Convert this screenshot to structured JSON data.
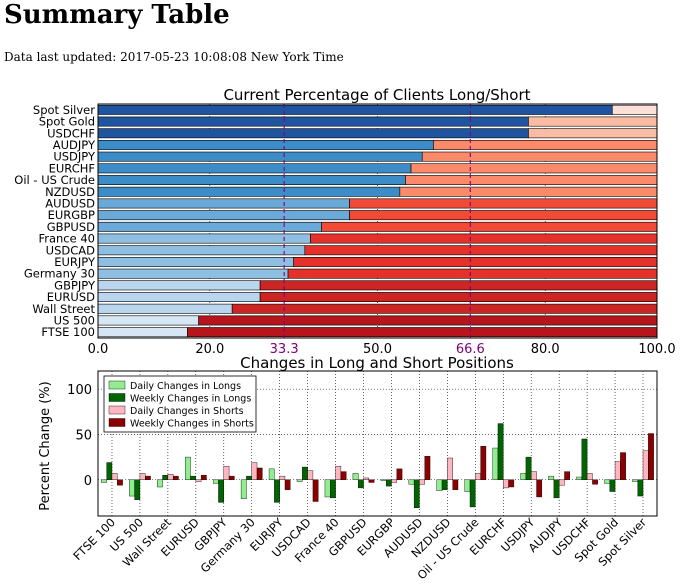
{
  "page": {
    "title": "Summary Table",
    "updated": "Data last updated: 2017-05-23 10:08:08 New York Time"
  },
  "chart_data": [
    {
      "type": "bar",
      "orientation": "horizontal",
      "stacked": true,
      "title": "Current Percentage of Clients Long/Short",
      "categories": [
        "Spot Silver",
        "Spot Gold",
        "USDCHF",
        "AUDJPY",
        "USDJPY",
        "EURCHF",
        "Oil - US Crude",
        "NZDUSD",
        "AUDUSD",
        "EURGBP",
        "GBPUSD",
        "France 40",
        "USDCAD",
        "EURJPY",
        "Germany 30",
        "GBPJPY",
        "EURUSD",
        "Wall Street",
        "US 500",
        "FTSE 100"
      ],
      "series": [
        {
          "values": [
            92,
            77,
            77,
            60,
            58,
            56,
            55,
            54,
            45,
            45,
            40,
            38,
            37,
            35,
            34,
            29,
            29,
            24,
            18,
            16
          ]
        },
        {
          "values": [
            8,
            23,
            23,
            40,
            42,
            44,
            45,
            46,
            55,
            55,
            60,
            62,
            63,
            65,
            66,
            71,
            71,
            76,
            82,
            84
          ]
        }
      ],
      "xlim": [
        0,
        100
      ],
      "xticks": [
        "0.0",
        "20.0",
        "33.3",
        "50.0",
        "66.6",
        "80.0",
        "100.0"
      ],
      "reference_lines": [
        33.3,
        66.6
      ],
      "grid": true
    },
    {
      "type": "bar",
      "title": "Changes in Long and Short Positions",
      "ylabel": "Percent Change (%)",
      "categories": [
        "FTSE 100",
        "US 500",
        "Wall Street",
        "EURUSD",
        "GBPJPY",
        "Germany 30",
        "EURJPY",
        "USDCAD",
        "France 40",
        "GBPUSD",
        "EURGBP",
        "AUDUSD",
        "NZDUSD",
        "Oil - US Crude",
        "EURCHF",
        "USDJPY",
        "AUDJPY",
        "USDCHF",
        "Spot Gold",
        "Spot Silver"
      ],
      "series": [
        {
          "name": "Daily Changes in Longs",
          "values": [
            -3,
            -18,
            -8,
            25,
            -4,
            -21,
            12,
            -2,
            -19,
            7,
            -1,
            -5,
            -12,
            -13,
            35,
            7,
            4,
            3,
            -4,
            -2
          ]
        },
        {
          "name": "Weekly Changes in Longs",
          "values": [
            19,
            -22,
            5,
            4,
            -25,
            4,
            -25,
            14,
            -20,
            -9,
            -7,
            -31,
            -11,
            -30,
            62,
            25,
            -20,
            45,
            -13,
            -18
          ]
        },
        {
          "name": "Daily Changes in Shorts",
          "values": [
            7,
            7,
            6,
            -2,
            15,
            19,
            4,
            10,
            15,
            2,
            -3,
            -5,
            24,
            7,
            -9,
            9,
            -6,
            7,
            20,
            32
          ]
        },
        {
          "name": "Weekly Changes in Shorts",
          "values": [
            -6,
            4,
            4,
            5,
            4,
            13,
            -11,
            -24,
            9,
            -3,
            12,
            26,
            -11,
            37,
            -8,
            -19,
            9,
            -5,
            30,
            51
          ]
        }
      ],
      "ylim": [
        -40,
        120
      ],
      "yticks": [
        "0",
        "50",
        "100"
      ],
      "legend": "top-left",
      "grid": true
    }
  ],
  "colors": {
    "long_bars": [
      "#1f55a0",
      "#1f55a0",
      "#1f55a0",
      "#3c8cc8",
      "#3c8cc8",
      "#3c8cc8",
      "#3c8cc8",
      "#3c8cc8",
      "#6aa9d8",
      "#6aa9d8",
      "#6aa9d8",
      "#8ebfe3",
      "#8ebfe3",
      "#8ebfe3",
      "#8ebfe3",
      "#b9d6ee",
      "#b9d6ee",
      "#b9d6ee",
      "#d6e6f5",
      "#d6e6f5"
    ],
    "short_bars": [
      "#fce0d8",
      "#fcbca4",
      "#fcbca4",
      "#fb8a6a",
      "#fb8a6a",
      "#fb8a6a",
      "#fb8a6a",
      "#fb8a6a",
      "#f14a36",
      "#f14a36",
      "#f14a36",
      "#e43129",
      "#e43129",
      "#e43129",
      "#e43129",
      "#cd2424",
      "#cd2424",
      "#cd2424",
      "#b5151b",
      "#b5151b"
    ],
    "series": [
      "#90ee90",
      "#006400",
      "#ffb6c1",
      "#8b0000"
    ],
    "reference_line": "#800080"
  }
}
